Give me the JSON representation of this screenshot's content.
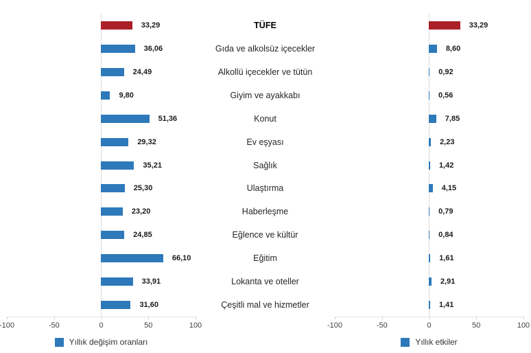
{
  "figure": {
    "center_title": "TÜFE",
    "categories": [
      "TÜFE",
      "Gıda ve alkolsüz içecekler",
      "Alkollü içecekler ve tütün",
      "Giyim ve ayakkabı",
      "Konut",
      "Ev eşyası",
      "Sağlık",
      "Ulaştırma",
      "Haberleşme",
      "Eğlence ve kültür",
      "Eğitim",
      "Lokanta ve oteller",
      "Çeşitli mal ve hizmetler"
    ]
  },
  "colors": {
    "bar_blue": "#2e79b9",
    "bar_red": "#aa1f28",
    "zero_line": "#dcdcdc",
    "axis_line": "#e8e8e8"
  },
  "chart_data": [
    {
      "type": "bar",
      "orientation": "horizontal",
      "side": "left",
      "legend": "Yıllık değişim oranları",
      "categories": [
        "TÜFE",
        "Gıda ve alkolsüz içecekler",
        "Alkollü içecekler ve tütün",
        "Giyim ve ayakkabı",
        "Konut",
        "Ev eşyası",
        "Sağlık",
        "Ulaştırma",
        "Haberleşme",
        "Eğlence ve kültür",
        "Eğitim",
        "Lokanta ve oteller",
        "Çeşitli mal ve hizmetler"
      ],
      "values": [
        33.29,
        36.06,
        24.49,
        9.8,
        51.36,
        29.32,
        35.21,
        25.3,
        23.2,
        24.85,
        66.1,
        33.91,
        31.6
      ],
      "value_labels": [
        "33,29",
        "36,06",
        "24,49",
        "9,80",
        "51,36",
        "29,32",
        "35,21",
        "25,30",
        "23,20",
        "24,85",
        "66,10",
        "33,91",
        "31,60"
      ],
      "highlight_index": 0,
      "xlim": [
        -100,
        100
      ],
      "x_ticks": [
        -100,
        -50,
        0,
        50,
        100
      ],
      "x_tick_labels": [
        "-100",
        "-50",
        "0",
        "50",
        "100"
      ],
      "grid": false,
      "legend_position": "bottom"
    },
    {
      "type": "bar",
      "orientation": "horizontal",
      "side": "right",
      "legend": "Yıllık etkiler",
      "categories": [
        "TÜFE",
        "Gıda ve alkolsüz içecekler",
        "Alkollü içecekler ve tütün",
        "Giyim ve ayakkabı",
        "Konut",
        "Ev eşyası",
        "Sağlık",
        "Ulaştırma",
        "Haberleşme",
        "Eğlence ve kültür",
        "Eğitim",
        "Lokanta ve oteller",
        "Çeşitli mal ve hizmetler"
      ],
      "values": [
        33.29,
        8.6,
        0.92,
        0.56,
        7.85,
        2.23,
        1.42,
        4.15,
        0.79,
        0.84,
        1.61,
        2.91,
        1.41
      ],
      "value_labels": [
        "33,29",
        "8,60",
        "0,92",
        "0,56",
        "7,85",
        "2,23",
        "1,42",
        "4,15",
        "0,79",
        "0,84",
        "1,61",
        "2,91",
        "1,41"
      ],
      "highlight_index": 0,
      "xlim": [
        -100,
        100
      ],
      "x_ticks": [
        -100,
        -50,
        0,
        50,
        100
      ],
      "x_tick_labels": [
        "-100",
        "-50",
        "0",
        "50",
        "100"
      ],
      "grid": false,
      "legend_position": "bottom"
    }
  ]
}
